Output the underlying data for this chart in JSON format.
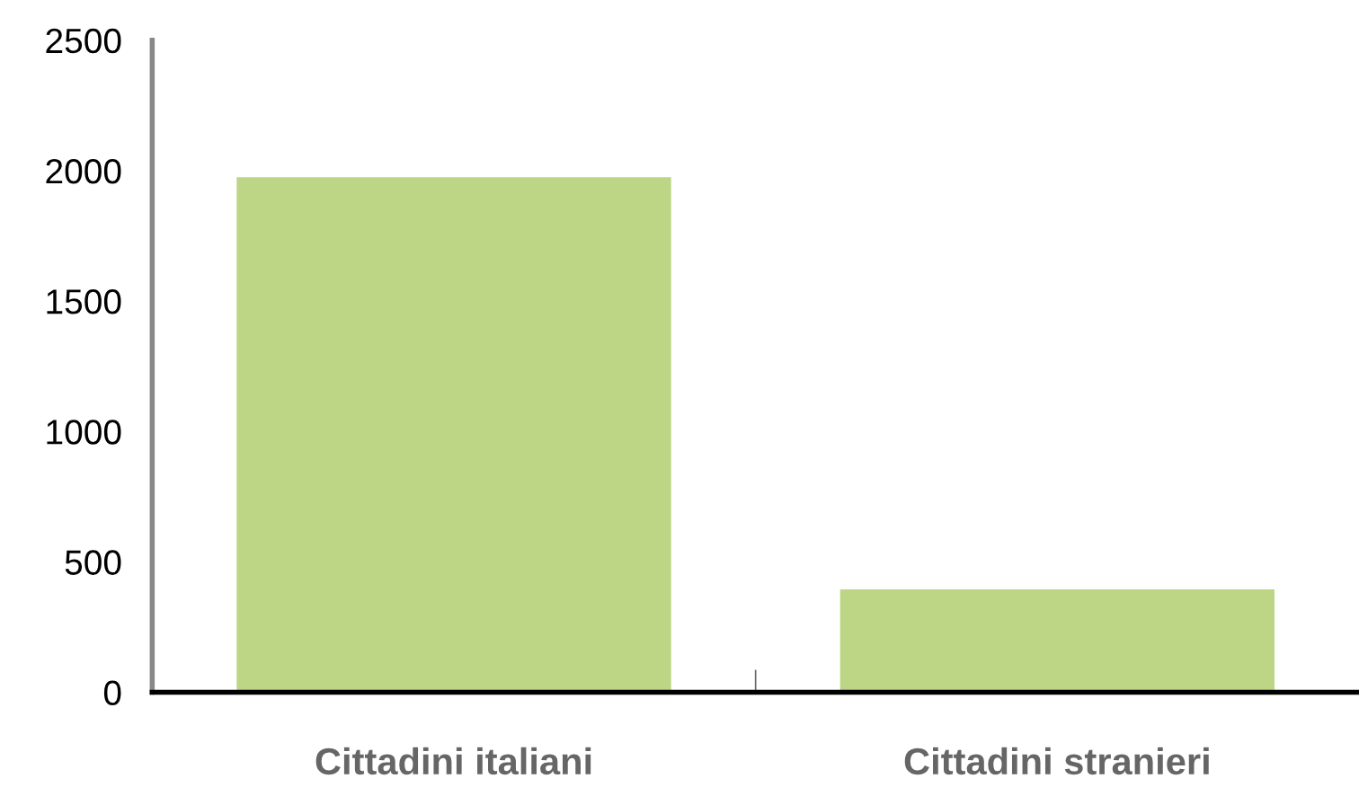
{
  "chart_data": {
    "type": "bar",
    "categories": [
      "Cittadini italiani",
      "Cittadini stranieri"
    ],
    "values": [
      1975,
      395
    ],
    "color": "#bcd685",
    "ylim": [
      0,
      2500
    ],
    "yticks": [
      0,
      500,
      1000,
      1500,
      2000,
      2500
    ],
    "grid": false
  }
}
